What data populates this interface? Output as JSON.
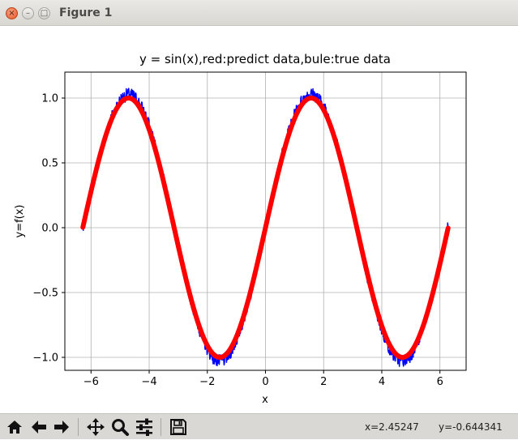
{
  "window": {
    "title": "Figure 1",
    "buttons": [
      "close",
      "minimize",
      "maximize"
    ]
  },
  "toolbar": {
    "tools": [
      {
        "name": "home-icon"
      },
      {
        "name": "back-arrow-icon"
      },
      {
        "name": "forward-arrow-icon"
      },
      {
        "name": "pan-move-icon"
      },
      {
        "name": "zoom-magnifier-icon"
      },
      {
        "name": "subplots-config-icon"
      },
      {
        "name": "save-floppy-icon"
      }
    ],
    "x_readout": "x=2.45247",
    "y_readout": "y=-0.644341"
  },
  "chart_data": {
    "type": "line",
    "title": "y = sin(x),red:predict data,bule:true data",
    "xlabel": "x",
    "ylabel": "y=f(x)",
    "xlim": [
      -6.9,
      6.9
    ],
    "ylim": [
      -1.1,
      1.2
    ],
    "xticks": [
      -6,
      -4,
      -2,
      0,
      2,
      4,
      6
    ],
    "xtick_labels": [
      "−6",
      "−4",
      "−2",
      "0",
      "2",
      "4",
      "6"
    ],
    "yticks": [
      -1.0,
      -0.5,
      0.0,
      0.5,
      1.0
    ],
    "ytick_labels": [
      "−1.0",
      "−0.5",
      "0.0",
      "0.5",
      "1.0"
    ],
    "grid": true,
    "x_range": [
      -6.28,
      6.28
    ],
    "series": [
      {
        "color": "#0000ff",
        "function": "sin(x) + noise",
        "noise_amplitude": 0.05,
        "line_width": 1.5
      },
      {
        "color": "#ff0000",
        "function": "sin(x)",
        "line_width": 6
      }
    ]
  }
}
